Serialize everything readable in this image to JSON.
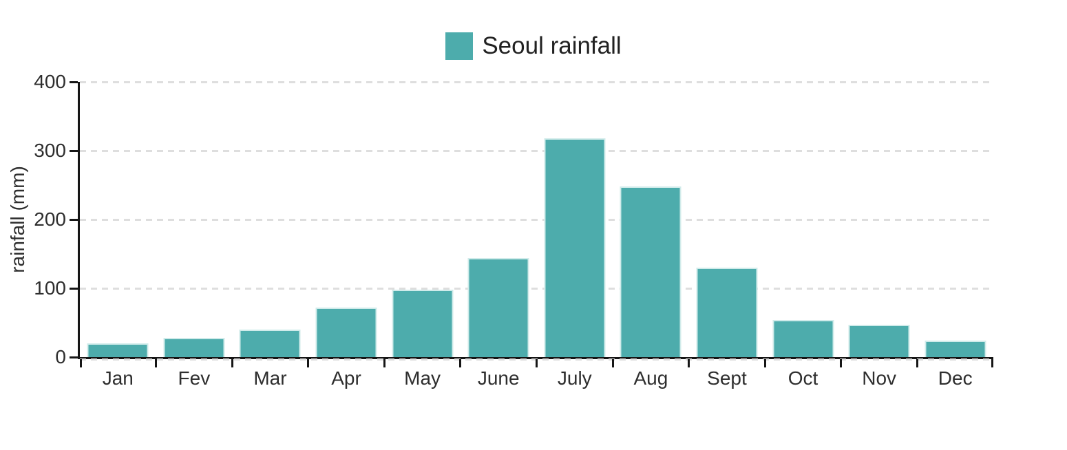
{
  "chart_data": {
    "type": "bar",
    "title": "Seoul rainfall",
    "series_name": "Seoul rainfall",
    "categories": [
      "Jan",
      "Fev",
      "Mar",
      "Apr",
      "May",
      "June",
      "July",
      "Aug",
      "Sept",
      "Oct",
      "Nov",
      "Dec"
    ],
    "values": [
      20,
      28,
      40,
      72,
      98,
      144,
      318,
      248,
      130,
      54,
      47,
      24
    ],
    "xlabel": "",
    "ylabel": "rainfall (mm)",
    "ylim": [
      0,
      400
    ],
    "yticks": [
      0,
      100,
      200,
      300,
      400
    ],
    "grid": "horizontal-dashed",
    "legend_position": "top-center",
    "bar_color": "#4DACAC"
  },
  "legend": {
    "label": "Seoul rainfall",
    "swatch_color": "#4DACAC"
  },
  "colors": {
    "bar": "#4DACAC",
    "bar_edge": "#D7EEED",
    "axis": "#161616",
    "grid": "#DEDEDE",
    "text": "#2E2E2E",
    "legend_text": "#212121"
  }
}
